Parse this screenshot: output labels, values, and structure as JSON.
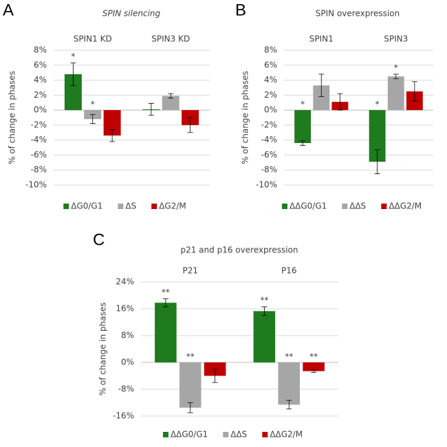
{
  "chart_data": [
    {
      "type": "bar",
      "panel": "A",
      "title": "SPIN silencing",
      "ylabel": "% of change in phases",
      "categories": [
        "SPIN1 KD",
        "SPIN3 KD"
      ],
      "ylim": [
        -10,
        8
      ],
      "yticks": [
        {
          "value": -10,
          "label": "-10%"
        },
        {
          "value": -8,
          "label": "-8%"
        },
        {
          "value": -6,
          "label": "-6%"
        },
        {
          "value": -4,
          "label": "-4%"
        },
        {
          "value": -2,
          "label": "-2%"
        },
        {
          "value": 0,
          "label": "0%"
        },
        {
          "value": 2,
          "label": "2%"
        },
        {
          "value": 4,
          "label": "4%"
        },
        {
          "value": 6,
          "label": "6%"
        },
        {
          "value": 8,
          "label": "8%"
        }
      ],
      "grid": true,
      "series": [
        {
          "name": "ΔG0/G1",
          "color": "#1e7b1e",
          "values": [
            4.8,
            0.1
          ],
          "errors": [
            1.5,
            0.8
          ],
          "significance": [
            "*",
            null
          ]
        },
        {
          "name": "ΔS",
          "color": "#a6a6a6",
          "values": [
            -1.2,
            1.9
          ],
          "errors": [
            0.6,
            0.3
          ],
          "significance": [
            "*",
            null
          ]
        },
        {
          "name": "ΔG2/M",
          "color": "#c00000",
          "values": [
            -3.4,
            -2.0
          ],
          "errors": [
            0.8,
            1.0
          ],
          "significance": [
            null,
            null
          ]
        }
      ]
    },
    {
      "type": "bar",
      "panel": "B",
      "title": "SPIN overexpression",
      "ylabel": "% of change in phases",
      "categories": [
        "SPIN1",
        "SPIN3"
      ],
      "ylim": [
        -10,
        8
      ],
      "yticks": [
        {
          "value": -10,
          "label": "-10%"
        },
        {
          "value": -8,
          "label": "-8%"
        },
        {
          "value": -6,
          "label": "-6%"
        },
        {
          "value": -4,
          "label": "-4%"
        },
        {
          "value": -2,
          "label": "-2%"
        },
        {
          "value": 0,
          "label": "0%"
        },
        {
          "value": 2,
          "label": "2%"
        },
        {
          "value": 4,
          "label": "4%"
        },
        {
          "value": 6,
          "label": "6%"
        },
        {
          "value": 8,
          "label": "8%"
        }
      ],
      "grid": true,
      "series": [
        {
          "name": "ΔΔG0/G1",
          "color": "#1e7b1e",
          "values": [
            -4.4,
            -6.9
          ],
          "errors": [
            0.3,
            1.6
          ],
          "significance": [
            "*",
            "*"
          ]
        },
        {
          "name": "ΔΔS",
          "color": "#a6a6a6",
          "values": [
            3.3,
            4.5
          ],
          "errors": [
            1.5,
            0.3
          ],
          "significance": [
            null,
            "*"
          ]
        },
        {
          "name": "ΔΔG2/M",
          "color": "#c00000",
          "values": [
            1.1,
            2.5
          ],
          "errors": [
            1.1,
            1.3
          ],
          "significance": [
            null,
            null
          ]
        }
      ]
    },
    {
      "type": "bar",
      "panel": "C",
      "title": "p21 and p16 overexpression",
      "ylabel": "% of change in phases",
      "categories": [
        "P21",
        "P16"
      ],
      "ylim": [
        -16,
        24
      ],
      "yticks": [
        {
          "value": -16,
          "label": "-16%"
        },
        {
          "value": -8,
          "label": "-8%"
        },
        {
          "value": 0,
          "label": "0%"
        },
        {
          "value": 8,
          "label": "8%"
        },
        {
          "value": 16,
          "label": "16%"
        },
        {
          "value": 24,
          "label": "24%"
        }
      ],
      "grid": true,
      "series": [
        {
          "name": "ΔΔG0/G1",
          "color": "#1e7b1e",
          "values": [
            17.8,
            15.3
          ],
          "errors": [
            1.2,
            1.3
          ],
          "significance": [
            "**",
            "**"
          ]
        },
        {
          "name": "ΔΔS",
          "color": "#a6a6a6",
          "values": [
            -13.5,
            -12.6
          ],
          "errors": [
            1.5,
            1.3
          ],
          "significance": [
            "**",
            "**"
          ]
        },
        {
          "name": "ΔΔG2/M",
          "color": "#c00000",
          "values": [
            -4.0,
            -2.6
          ],
          "errors": [
            2.0,
            0.4
          ],
          "significance": [
            null,
            "**"
          ]
        }
      ]
    }
  ]
}
